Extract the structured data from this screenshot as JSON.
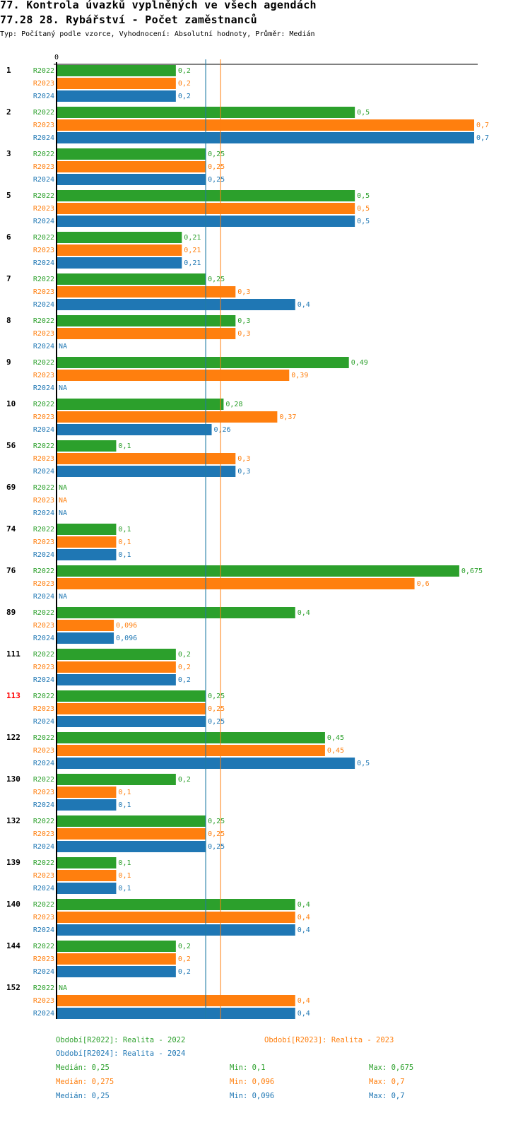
{
  "header": {
    "title": "77. Kontrola úvazků vyplněných ve všech agendách",
    "subtitle": "77.28 28. Rybářství - Počet zaměstnanců",
    "info": "Typ: Počítaný podle vzorce, Vyhodnocení: Absolutní hodnoty, Průměr: Medián"
  },
  "chart_data": {
    "type": "bar",
    "orientation": "horizontal",
    "axis_zero_label": "0",
    "xlim": [
      0,
      0.7
    ],
    "series_names": [
      "R2022",
      "R2023",
      "R2024"
    ],
    "colors": {
      "R2022": "#2ca02c",
      "R2023": "#ff7f0e",
      "R2024": "#1f77b4"
    },
    "highlight_color": "#ff0000",
    "groups": [
      {
        "id": "1",
        "values": [
          0.2,
          0.2,
          0.2
        ],
        "labels": [
          "0,2",
          "0,2",
          "0,2"
        ]
      },
      {
        "id": "2",
        "values": [
          0.5,
          0.7,
          0.7
        ],
        "labels": [
          "0,5",
          "0,7",
          "0,7"
        ]
      },
      {
        "id": "3",
        "values": [
          0.25,
          0.25,
          0.25
        ],
        "labels": [
          "0,25",
          "0,25",
          "0,25"
        ]
      },
      {
        "id": "5",
        "values": [
          0.5,
          0.5,
          0.5
        ],
        "labels": [
          "0,5",
          "0,5",
          "0,5"
        ]
      },
      {
        "id": "6",
        "values": [
          0.21,
          0.21,
          0.21
        ],
        "labels": [
          "0,21",
          "0,21",
          "0,21"
        ]
      },
      {
        "id": "7",
        "values": [
          0.25,
          0.3,
          0.4
        ],
        "labels": [
          "0,25",
          "0,3",
          "0,4"
        ]
      },
      {
        "id": "8",
        "values": [
          0.3,
          0.3,
          null
        ],
        "labels": [
          "0,3",
          "0,3",
          "NA"
        ]
      },
      {
        "id": "9",
        "values": [
          0.49,
          0.39,
          null
        ],
        "labels": [
          "0,49",
          "0,39",
          "NA"
        ]
      },
      {
        "id": "10",
        "values": [
          0.28,
          0.37,
          0.26
        ],
        "labels": [
          "0,28",
          "0,37",
          "0,26"
        ]
      },
      {
        "id": "56",
        "values": [
          0.1,
          0.3,
          0.3
        ],
        "labels": [
          "0,1",
          "0,3",
          "0,3"
        ]
      },
      {
        "id": "69",
        "values": [
          null,
          null,
          null
        ],
        "labels": [
          "NA",
          "NA",
          "NA"
        ]
      },
      {
        "id": "74",
        "values": [
          0.1,
          0.1,
          0.1
        ],
        "labels": [
          "0,1",
          "0,1",
          "0,1"
        ]
      },
      {
        "id": "76",
        "values": [
          0.675,
          0.6,
          null
        ],
        "labels": [
          "0,675",
          "0,6",
          "NA"
        ]
      },
      {
        "id": "89",
        "values": [
          0.4,
          0.096,
          0.096
        ],
        "labels": [
          "0,4",
          "0,096",
          "0,096"
        ]
      },
      {
        "id": "111",
        "values": [
          0.2,
          0.2,
          0.2
        ],
        "labels": [
          "0,2",
          "0,2",
          "0,2"
        ]
      },
      {
        "id": "113",
        "values": [
          0.25,
          0.25,
          0.25
        ],
        "labels": [
          "0,25",
          "0,25",
          "0,25"
        ],
        "highlight": true
      },
      {
        "id": "122",
        "values": [
          0.45,
          0.45,
          0.5
        ],
        "labels": [
          "0,45",
          "0,45",
          "0,5"
        ]
      },
      {
        "id": "130",
        "values": [
          0.2,
          0.1,
          0.1
        ],
        "labels": [
          "0,2",
          "0,1",
          "0,1"
        ]
      },
      {
        "id": "132",
        "values": [
          0.25,
          0.25,
          0.25
        ],
        "labels": [
          "0,25",
          "0,25",
          "0,25"
        ]
      },
      {
        "id": "139",
        "values": [
          0.1,
          0.1,
          0.1
        ],
        "labels": [
          "0,1",
          "0,1",
          "0,1"
        ]
      },
      {
        "id": "140",
        "values": [
          0.4,
          0.4,
          0.4
        ],
        "labels": [
          "0,4",
          "0,4",
          "0,4"
        ]
      },
      {
        "id": "144",
        "values": [
          0.2,
          0.2,
          0.2
        ],
        "labels": [
          "0,2",
          "0,2",
          "0,2"
        ]
      },
      {
        "id": "152",
        "values": [
          null,
          0.4,
          0.4
        ],
        "labels": [
          "NA",
          "0,4",
          "0,4"
        ]
      }
    ],
    "median_lines": [
      {
        "series": "R2022",
        "value": 0.25
      },
      {
        "series": "R2024",
        "value": 0.25
      },
      {
        "series": "R2023",
        "value": 0.275
      }
    ]
  },
  "legend": {
    "periods": [
      "Období[R2022]: Realita - 2022",
      "Období[R2023]: Realita - 2023",
      "Období[R2024]: Realita - 2024"
    ],
    "stats": [
      {
        "median": "Medián: 0,25",
        "min": "Min: 0,1",
        "max": "Max: 0,675"
      },
      {
        "median": "Medián: 0,275",
        "min": "Min: 0,096",
        "max": "Max: 0,7"
      },
      {
        "median": "Medián: 0,25",
        "min": "Min: 0,096",
        "max": "Max: 0,7"
      }
    ]
  }
}
